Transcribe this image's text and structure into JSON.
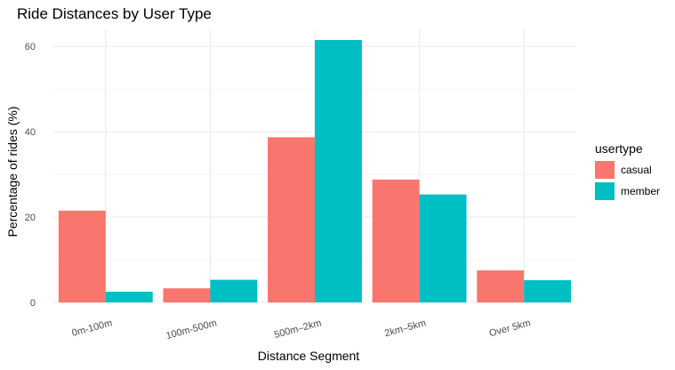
{
  "chart_data": {
    "type": "bar",
    "title": "Ride Distances by User Type",
    "xlabel": "Distance Segment",
    "ylabel": "Percentage of rides (%)",
    "categories": [
      "0m-100m",
      "100m-500m",
      "500m–2km",
      "2km–5km",
      "Over 5km"
    ],
    "series": [
      {
        "name": "casual",
        "color": "#F8766D",
        "values": [
          21.5,
          3.3,
          38.7,
          28.8,
          7.5
        ]
      },
      {
        "name": "member",
        "color": "#00BFC4",
        "values": [
          2.5,
          5.3,
          61.5,
          25.3,
          5.2
        ]
      }
    ],
    "ylim": [
      0,
      64
    ],
    "yticks": [
      0,
      20,
      40,
      60
    ],
    "grid": true,
    "legend": {
      "title": "usertype",
      "position": "right"
    }
  }
}
